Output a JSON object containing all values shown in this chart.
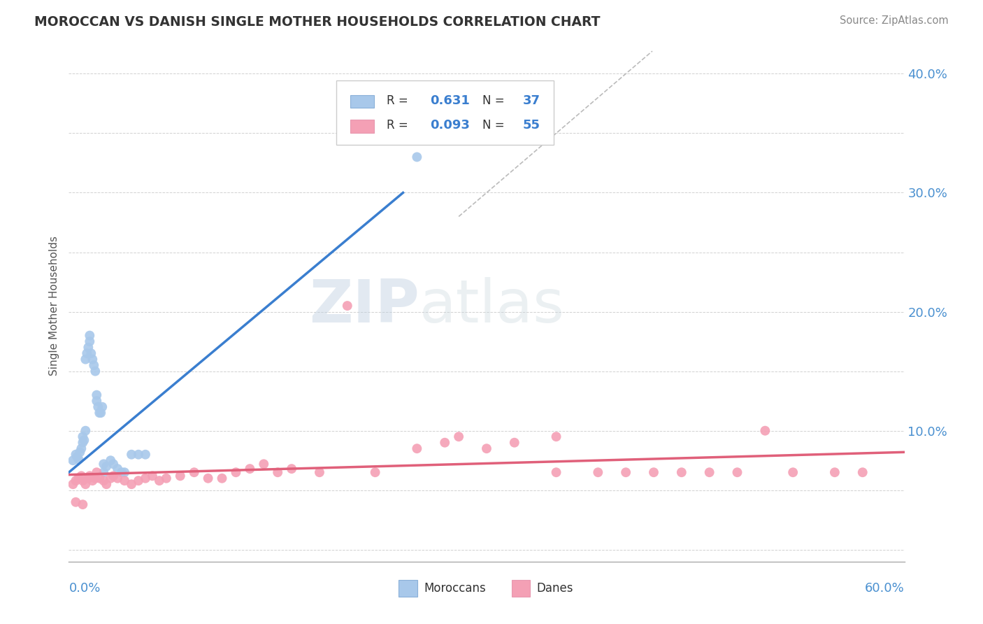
{
  "title": "MOROCCAN VS DANISH SINGLE MOTHER HOUSEHOLDS CORRELATION CHART",
  "source": "Source: ZipAtlas.com",
  "ylabel": "Single Mother Households",
  "x_min": 0.0,
  "x_max": 0.6,
  "y_min": -0.01,
  "y_max": 0.42,
  "yticks": [
    0.0,
    0.1,
    0.2,
    0.3,
    0.4
  ],
  "ytick_labels": [
    "",
    "10.0%",
    "20.0%",
    "30.0%",
    "40.0%"
  ],
  "r_moroccan": 0.631,
  "n_moroccan": 37,
  "r_danish": 0.093,
  "n_danish": 55,
  "color_moroccan": "#a8c8ea",
  "color_danish": "#f4a0b5",
  "color_moroccan_line": "#3a7ecf",
  "color_danish_line": "#e0607a",
  "color_ref_line": "#bbbbbb",
  "watermark_zip": "ZIP",
  "watermark_atlas": "atlas",
  "moroccan_x": [
    0.003,
    0.005,
    0.006,
    0.007,
    0.008,
    0.009,
    0.01,
    0.01,
    0.011,
    0.012,
    0.012,
    0.013,
    0.014,
    0.015,
    0.015,
    0.016,
    0.017,
    0.018,
    0.019,
    0.02,
    0.02,
    0.021,
    0.022,
    0.023,
    0.024,
    0.025,
    0.025,
    0.027,
    0.03,
    0.032,
    0.035,
    0.038,
    0.04,
    0.045,
    0.05,
    0.055,
    0.25
  ],
  "moroccan_y": [
    0.075,
    0.08,
    0.078,
    0.076,
    0.082,
    0.085,
    0.09,
    0.095,
    0.092,
    0.1,
    0.16,
    0.165,
    0.17,
    0.175,
    0.18,
    0.165,
    0.16,
    0.155,
    0.15,
    0.13,
    0.125,
    0.12,
    0.115,
    0.115,
    0.12,
    0.072,
    0.065,
    0.07,
    0.075,
    0.072,
    0.068,
    0.065,
    0.065,
    0.08,
    0.08,
    0.08,
    0.33
  ],
  "danish_x": [
    0.003,
    0.005,
    0.007,
    0.009,
    0.01,
    0.012,
    0.014,
    0.015,
    0.017,
    0.019,
    0.02,
    0.022,
    0.025,
    0.027,
    0.03,
    0.032,
    0.035,
    0.04,
    0.045,
    0.05,
    0.055,
    0.06,
    0.065,
    0.07,
    0.08,
    0.09,
    0.1,
    0.11,
    0.12,
    0.13,
    0.14,
    0.15,
    0.16,
    0.18,
    0.2,
    0.22,
    0.25,
    0.27,
    0.28,
    0.3,
    0.32,
    0.35,
    0.38,
    0.4,
    0.42,
    0.44,
    0.46,
    0.48,
    0.5,
    0.52,
    0.55,
    0.57,
    0.005,
    0.01,
    0.35
  ],
  "danish_y": [
    0.055,
    0.058,
    0.06,
    0.062,
    0.058,
    0.055,
    0.06,
    0.062,
    0.058,
    0.06,
    0.065,
    0.06,
    0.058,
    0.055,
    0.06,
    0.062,
    0.06,
    0.058,
    0.055,
    0.058,
    0.06,
    0.062,
    0.058,
    0.06,
    0.062,
    0.065,
    0.06,
    0.06,
    0.065,
    0.068,
    0.072,
    0.065,
    0.068,
    0.065,
    0.205,
    0.065,
    0.085,
    0.09,
    0.095,
    0.085,
    0.09,
    0.065,
    0.065,
    0.065,
    0.065,
    0.065,
    0.065,
    0.065,
    0.1,
    0.065,
    0.065,
    0.065,
    0.04,
    0.038,
    0.095
  ]
}
